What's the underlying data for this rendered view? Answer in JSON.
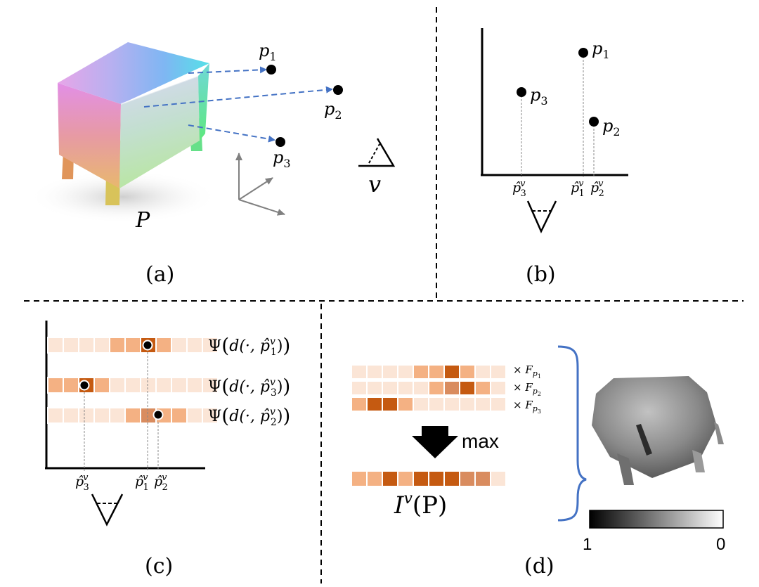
{
  "panels": {
    "a": {
      "caption": "(a)",
      "object_label": "P",
      "points": [
        {
          "base": "p",
          "sub": "1"
        },
        {
          "base": "p",
          "sub": "2"
        },
        {
          "base": "p",
          "sub": "3"
        }
      ],
      "viewpoint_label": "v"
    },
    "b": {
      "caption": "(b)",
      "points": [
        {
          "base": "p",
          "sub": "3"
        },
        {
          "base": "p",
          "sub": "1"
        },
        {
          "base": "p",
          "sub": "2"
        }
      ],
      "projections": [
        {
          "base": "p̂",
          "sub": "3",
          "sup": "v"
        },
        {
          "base": "p̂",
          "sub": "1",
          "sup": "v"
        },
        {
          "base": "p̂",
          "sub": "2",
          "sup": "v"
        }
      ]
    },
    "c": {
      "caption": "(c)",
      "rows": [
        {
          "pre": "Ψ",
          "arg": "d(·, ",
          "base": "p̂",
          "sub": "1",
          "sup": "v",
          "post": ")"
        },
        {
          "pre": "Ψ",
          "arg": "d(·, ",
          "base": "p̂",
          "sub": "3",
          "sup": "v",
          "post": ")"
        },
        {
          "pre": "Ψ",
          "arg": "d(·, ",
          "base": "p̂",
          "sub": "2",
          "sup": "v",
          "post": ")"
        }
      ],
      "projections": [
        {
          "base": "p̂",
          "sub": "3",
          "sup": "v"
        },
        {
          "base": "p̂",
          "sub": "1",
          "sup": "v"
        },
        {
          "base": "p̂",
          "sub": "2",
          "sup": "v"
        }
      ]
    },
    "d": {
      "caption": "(d)",
      "feature_labels": [
        {
          "pre": "× ",
          "base": "F",
          "sub": "p",
          "subsub": "1"
        },
        {
          "pre": "× ",
          "base": "F",
          "sub": "p",
          "subsub": "2"
        },
        {
          "pre": "× ",
          "base": "F",
          "sub": "p",
          "subsub": "3"
        }
      ],
      "operation": "max",
      "result": {
        "base": "I",
        "sup": "v",
        "arg": "(P)"
      },
      "colorbar": {
        "min_label": "1",
        "max_label": "0"
      }
    }
  },
  "colors": {
    "arrow": "#4472c4",
    "brace": "#4472c4",
    "cell_light": "#fbe5d6",
    "cell_mid": "#f4b183",
    "cell_dark": "#c55a11",
    "cell_muted": "#d98c5f"
  }
}
